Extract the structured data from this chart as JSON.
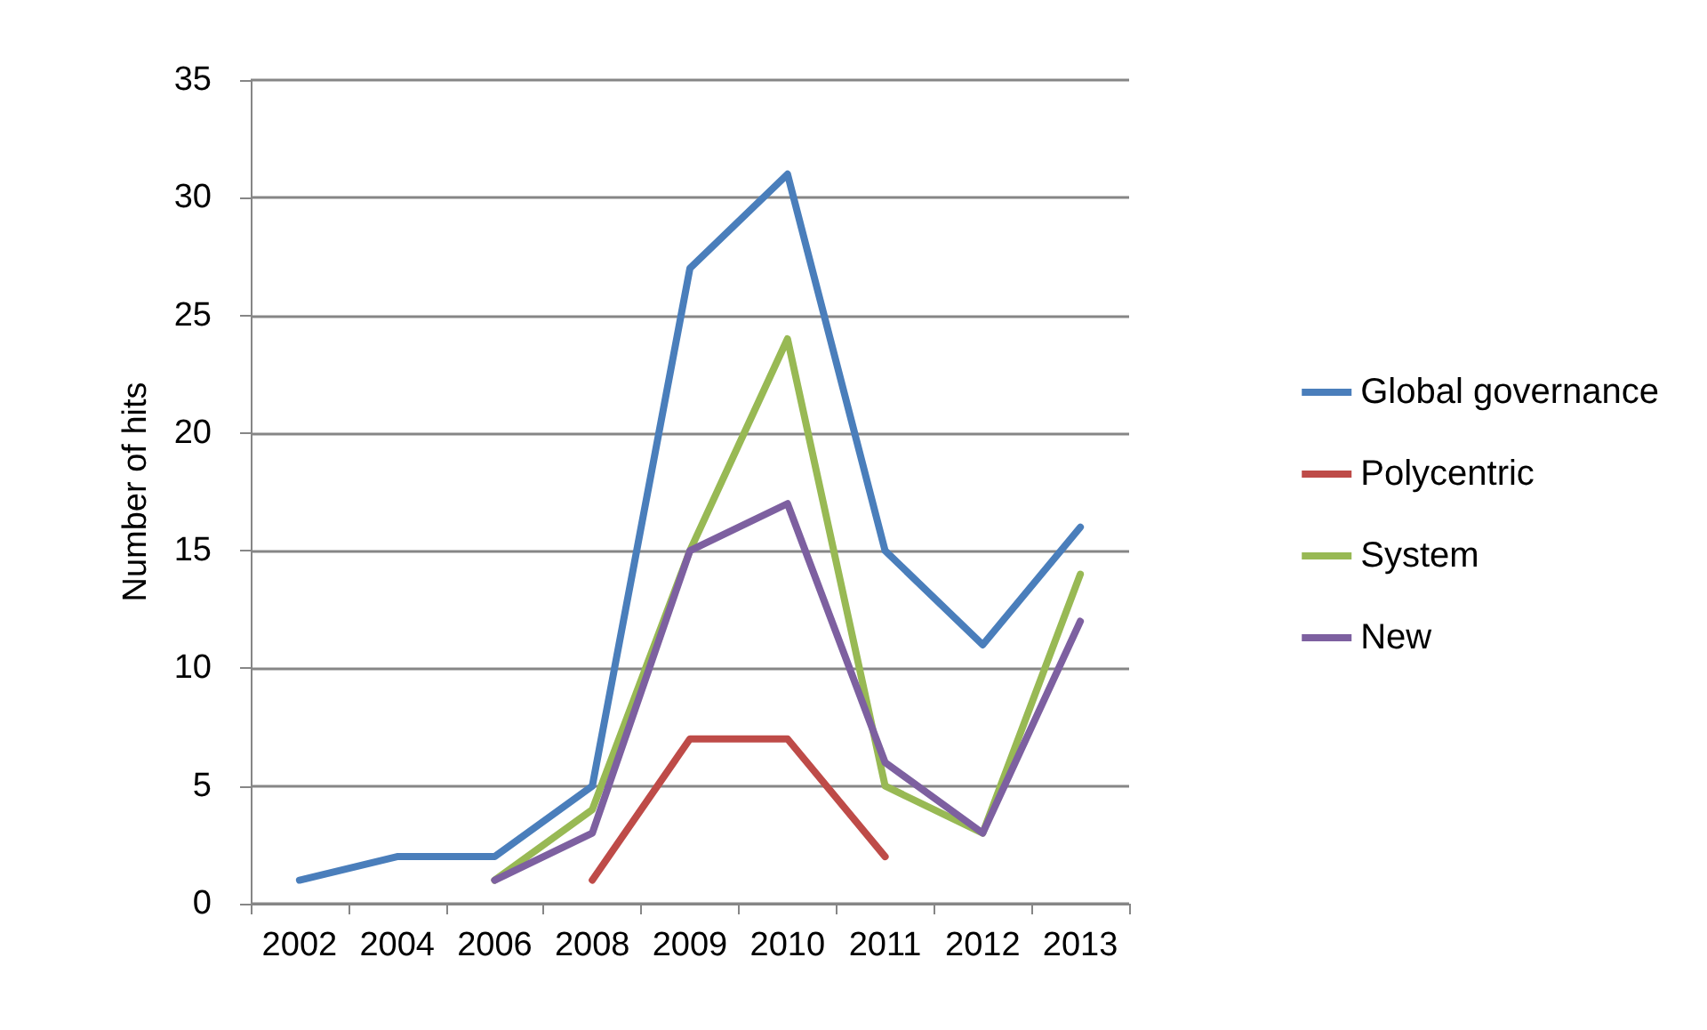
{
  "chart_data": {
    "type": "line",
    "ylabel": "Number of hits",
    "categories": [
      "2002",
      "2004",
      "2006",
      "2008",
      "2009",
      "2010",
      "2011",
      "2012",
      "2013"
    ],
    "series": [
      {
        "name": "Global governance",
        "color": "#4a7ebb",
        "values": [
          1,
          2,
          2,
          5,
          27,
          31,
          15,
          11,
          16
        ]
      },
      {
        "name": "Polycentric",
        "color": "#be4b48",
        "values": [
          null,
          null,
          null,
          1,
          7,
          7,
          2,
          null,
          null
        ]
      },
      {
        "name": "System",
        "color": "#98b954",
        "values": [
          null,
          null,
          1,
          4,
          15,
          24,
          5,
          3,
          14
        ]
      },
      {
        "name": "New",
        "color": "#7d60a0",
        "values": [
          null,
          null,
          1,
          3,
          15,
          17,
          6,
          3,
          12
        ]
      }
    ],
    "ylim": [
      0,
      35
    ],
    "yticks": [
      0,
      5,
      10,
      15,
      20,
      25,
      30,
      35
    ],
    "grid": "y",
    "legend": "right",
    "marker": "none",
    "line_style": "solid"
  }
}
